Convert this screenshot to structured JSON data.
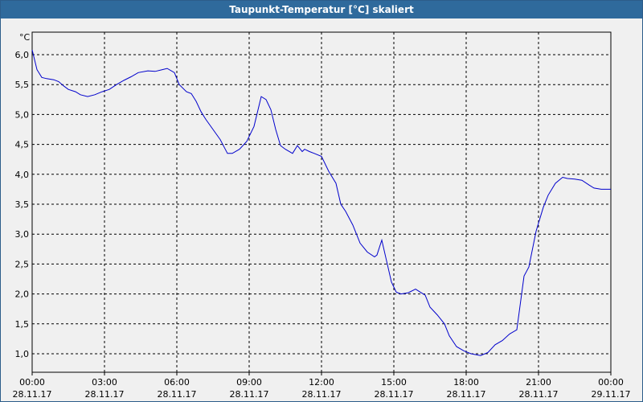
{
  "window": {
    "title": "Taupunkt-Temperatur [°C] skaliert"
  },
  "chart_data": {
    "type": "line",
    "title": "Taupunkt-Temperatur [°C] skaliert",
    "ylabel": "°C",
    "xlabel": "",
    "ylim": [
      0.7,
      6.4
    ],
    "xlim": [
      0,
      24
    ],
    "grid": true,
    "y_ticks": [
      "1,0",
      "1,5",
      "2,0",
      "2,5",
      "3,0",
      "3,5",
      "4,0",
      "4,5",
      "5,0",
      "5,5",
      "6,0"
    ],
    "y_tick_values": [
      1.0,
      1.5,
      2.0,
      2.5,
      3.0,
      3.5,
      4.0,
      4.5,
      5.0,
      5.5,
      6.0
    ],
    "x_ticks": [
      {
        "time": "00:00",
        "date": "28.11.17",
        "hour": 0
      },
      {
        "time": "03:00",
        "date": "28.11.17",
        "hour": 3
      },
      {
        "time": "06:00",
        "date": "28.11.17",
        "hour": 6
      },
      {
        "time": "09:00",
        "date": "28.11.17",
        "hour": 9
      },
      {
        "time": "12:00",
        "date": "28.11.17",
        "hour": 12
      },
      {
        "time": "15:00",
        "date": "28.11.17",
        "hour": 15
      },
      {
        "time": "18:00",
        "date": "28.11.17",
        "hour": 18
      },
      {
        "time": "21:00",
        "date": "28.11.17",
        "hour": 21
      },
      {
        "time": "00:00",
        "date": "29.11.17",
        "hour": 24
      }
    ],
    "series": [
      {
        "color": "#0000cc",
        "x": [
          0.0,
          0.2,
          0.4,
          0.6,
          0.9,
          1.1,
          1.3,
          1.5,
          1.8,
          2.0,
          2.3,
          2.6,
          2.9,
          3.2,
          3.5,
          3.8,
          4.1,
          4.4,
          4.8,
          5.1,
          5.4,
          5.6,
          5.9,
          6.1,
          6.4,
          6.6,
          6.8,
          7.0,
          7.2,
          7.5,
          7.8,
          8.1,
          8.3,
          8.6,
          8.9,
          9.2,
          9.5,
          9.7,
          9.9,
          10.1,
          10.3,
          10.5,
          10.8,
          11.0,
          11.2,
          11.3,
          11.5,
          11.7,
          12.0,
          12.3,
          12.6,
          12.8,
          13.0,
          13.3,
          13.6,
          13.9,
          14.2,
          14.3,
          14.5,
          14.7,
          14.9,
          15.1,
          15.3,
          15.6,
          15.9,
          16.1,
          16.3,
          16.5,
          16.8,
          17.1,
          17.3,
          17.6,
          17.9,
          18.2,
          18.6,
          18.9,
          19.2,
          19.5,
          19.8,
          20.1,
          20.4,
          20.6,
          20.9,
          21.2,
          21.4,
          21.7,
          22.0,
          22.2,
          22.5,
          22.8,
          23.1,
          23.3,
          23.6,
          24.0
        ],
        "y": [
          6.08,
          5.75,
          5.62,
          5.6,
          5.58,
          5.55,
          5.48,
          5.42,
          5.38,
          5.33,
          5.3,
          5.33,
          5.38,
          5.42,
          5.5,
          5.57,
          5.63,
          5.7,
          5.73,
          5.72,
          5.75,
          5.77,
          5.7,
          5.5,
          5.38,
          5.35,
          5.22,
          5.05,
          4.92,
          4.75,
          4.58,
          4.35,
          4.35,
          4.42,
          4.55,
          4.8,
          5.3,
          5.25,
          5.08,
          4.75,
          4.48,
          4.42,
          4.35,
          4.48,
          4.38,
          4.42,
          4.38,
          4.35,
          4.3,
          4.05,
          3.85,
          3.5,
          3.38,
          3.15,
          2.85,
          2.7,
          2.62,
          2.65,
          2.9,
          2.55,
          2.2,
          2.03,
          2.0,
          2.02,
          2.08,
          2.03,
          1.98,
          1.78,
          1.65,
          1.5,
          1.3,
          1.12,
          1.05,
          1.0,
          0.97,
          1.02,
          1.15,
          1.22,
          1.33,
          1.4,
          2.3,
          2.45,
          3.05,
          3.45,
          3.65,
          3.85,
          3.95,
          3.93,
          3.92,
          3.9,
          3.82,
          3.77,
          3.75,
          3.75
        ]
      }
    ]
  }
}
